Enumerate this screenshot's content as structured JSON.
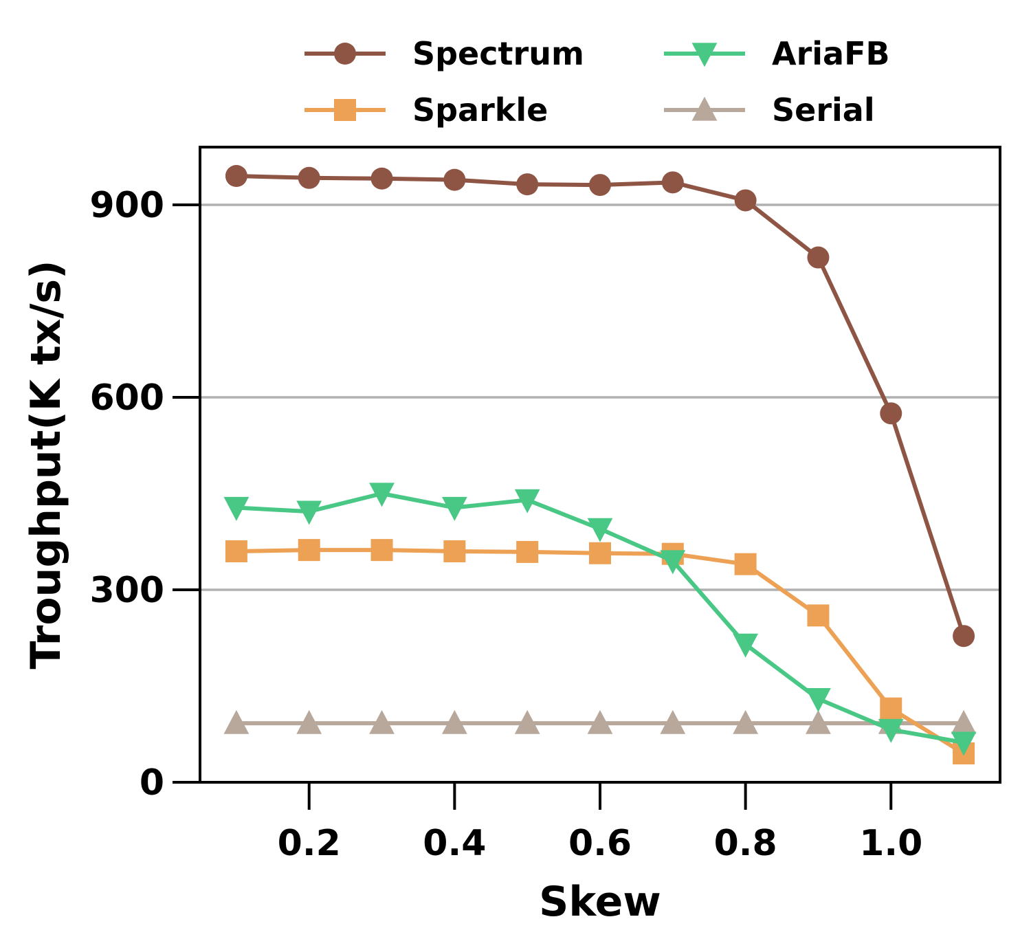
{
  "chart_data": {
    "type": "line",
    "title": "",
    "xlabel": "Skew",
    "ylabel": "Troughput(K tx/s)",
    "x": [
      0.1,
      0.2,
      0.3,
      0.4,
      0.5,
      0.6,
      0.7,
      0.8,
      0.9,
      1.0,
      1.1
    ],
    "xlim": [
      0.05,
      1.15
    ],
    "ylim": [
      0,
      990
    ],
    "xticks": [
      0.2,
      0.4,
      0.6,
      0.8,
      1.0
    ],
    "xtick_labels": [
      "0.2",
      "0.4",
      "0.6",
      "0.8",
      "1.0"
    ],
    "yticks": [
      0,
      300,
      600,
      900
    ],
    "ytick_labels": [
      "0",
      "300",
      "600",
      "900"
    ],
    "grid": "horizontal",
    "legend_position": "top-outside",
    "series": [
      {
        "name": "Spectrum",
        "color": "#8E5444",
        "marker": "circle",
        "values": [
          945,
          942,
          941,
          939,
          932,
          931,
          935,
          907,
          818,
          575,
          228
        ]
      },
      {
        "name": "AriaFB",
        "color": "#48C785",
        "marker": "triangle-down",
        "values": [
          428,
          422,
          450,
          428,
          440,
          395,
          345,
          215,
          130,
          82,
          62
        ]
      },
      {
        "name": "Sparkle",
        "color": "#EDA154",
        "marker": "square",
        "values": [
          360,
          362,
          362,
          360,
          359,
          357,
          356,
          340,
          260,
          115,
          45
        ]
      },
      {
        "name": "Serial",
        "color": "#B8A89C",
        "marker": "triangle-up",
        "values": [
          92,
          92,
          92,
          92,
          92,
          92,
          92,
          92,
          92,
          92,
          92
        ]
      }
    ]
  }
}
